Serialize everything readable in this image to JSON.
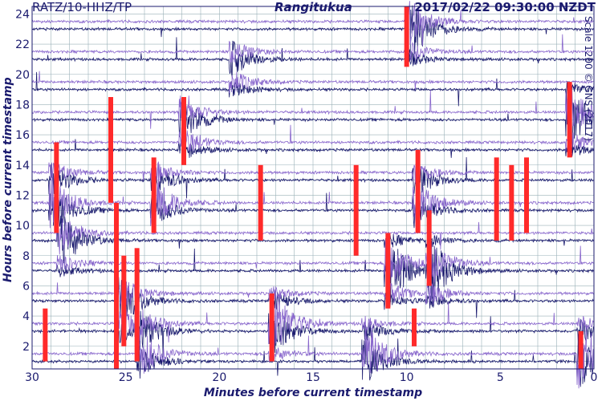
{
  "header": {
    "station": "RATZ/10-HHZ/TP",
    "site": "Rangitukua",
    "timestamp": "2017/02/22 09:30:00 NZDT"
  },
  "side_note": "Scale 1200 © GNS (2017)",
  "colors": {
    "trace_a": "#1a1a6e",
    "trace_b": "#8866cc",
    "clip": "#ff2a2a",
    "grid": "#9ab0b8",
    "text": "#1a1a6e"
  },
  "chart_data": {
    "type": "line",
    "title": "",
    "xlabel": "Minutes before current timestamp",
    "ylabel": "Hours before current timestamp",
    "xlim": [
      30,
      0
    ],
    "ylim": [
      0.5,
      24.5
    ],
    "xticks": [
      30,
      25,
      20,
      15,
      10,
      5,
      0
    ],
    "yticks": [
      2,
      4,
      6,
      8,
      10,
      12,
      14,
      16,
      18,
      20,
      22,
      24
    ],
    "grid": true,
    "series": [
      {
        "color": "trace_a",
        "hours": [
          1,
          3,
          5,
          7,
          9,
          11,
          13,
          15,
          17,
          19,
          21,
          23
        ]
      },
      {
        "color": "trace_b",
        "hours": [
          1.5,
          3.5,
          5.5,
          7.5,
          9.5,
          11.5,
          13.5,
          15.5,
          17.5,
          19.5,
          21.5,
          23.5
        ]
      }
    ],
    "events": [
      {
        "minute": 28.9,
        "hour": 12.0,
        "amp": 1.0
      },
      {
        "minute": 28.5,
        "hour": 9.0,
        "amp": 0.8
      },
      {
        "minute": 25.2,
        "hour": 4.5,
        "amp": 1.0
      },
      {
        "minute": 24.2,
        "hour": 2.0,
        "amp": 1.0
      },
      {
        "minute": 23.5,
        "hour": 12.0,
        "amp": 1.0
      },
      {
        "minute": 22.0,
        "hour": 16.5,
        "amp": 0.9
      },
      {
        "minute": 19.3,
        "hour": 20.5,
        "amp": 0.7
      },
      {
        "minute": 17.2,
        "hour": 3.5,
        "amp": 1.0
      },
      {
        "minute": 12.2,
        "hour": 1.5,
        "amp": 0.9
      },
      {
        "minute": 11.0,
        "hour": 7.0,
        "amp": 1.0
      },
      {
        "minute": 9.9,
        "hour": 23.0,
        "amp": 1.0
      },
      {
        "minute": 9.5,
        "hour": 12.0,
        "amp": 1.0
      },
      {
        "minute": 8.8,
        "hour": 7.0,
        "amp": 0.9
      },
      {
        "minute": 1.3,
        "hour": 17.0,
        "amp": 1.0
      },
      {
        "minute": 0.7,
        "hour": 1.5,
        "amp": 1.0
      }
    ],
    "clipped_segments": [
      {
        "minute": 29.3,
        "hour_from": 1.0,
        "hour_to": 4.5
      },
      {
        "minute": 28.7,
        "hour_from": 9.5,
        "hour_to": 15.5
      },
      {
        "minute": 25.8,
        "hour_from": 11.5,
        "hour_to": 18.5
      },
      {
        "minute": 25.5,
        "hour_from": 0.5,
        "hour_to": 11.5
      },
      {
        "minute": 25.1,
        "hour_from": 2.0,
        "hour_to": 8.0
      },
      {
        "minute": 24.4,
        "hour_from": 1.0,
        "hour_to": 8.5
      },
      {
        "minute": 23.5,
        "hour_from": 9.5,
        "hour_to": 14.5
      },
      {
        "minute": 21.9,
        "hour_from": 14.0,
        "hour_to": 18.5
      },
      {
        "minute": 17.2,
        "hour_from": 1.0,
        "hour_to": 5.5
      },
      {
        "minute": 17.8,
        "hour_from": 9.0,
        "hour_to": 14.0
      },
      {
        "minute": 12.7,
        "hour_from": 8.0,
        "hour_to": 14.0
      },
      {
        "minute": 11.0,
        "hour_from": 4.5,
        "hour_to": 9.5
      },
      {
        "minute": 10.0,
        "hour_from": 20.5,
        "hour_to": 24.5
      },
      {
        "minute": 9.6,
        "hour_from": 2.0,
        "hour_to": 4.5
      },
      {
        "minute": 9.4,
        "hour_from": 9.5,
        "hour_to": 15.0
      },
      {
        "minute": 8.8,
        "hour_from": 6.0,
        "hour_to": 11.0
      },
      {
        "minute": 5.2,
        "hour_from": 9.0,
        "hour_to": 14.5
      },
      {
        "minute": 4.4,
        "hour_from": 9.0,
        "hour_to": 14.0
      },
      {
        "minute": 3.6,
        "hour_from": 9.5,
        "hour_to": 14.5
      },
      {
        "minute": 1.3,
        "hour_from": 14.5,
        "hour_to": 19.5
      },
      {
        "minute": 0.7,
        "hour_from": 0.5,
        "hour_to": 3.0
      }
    ]
  }
}
